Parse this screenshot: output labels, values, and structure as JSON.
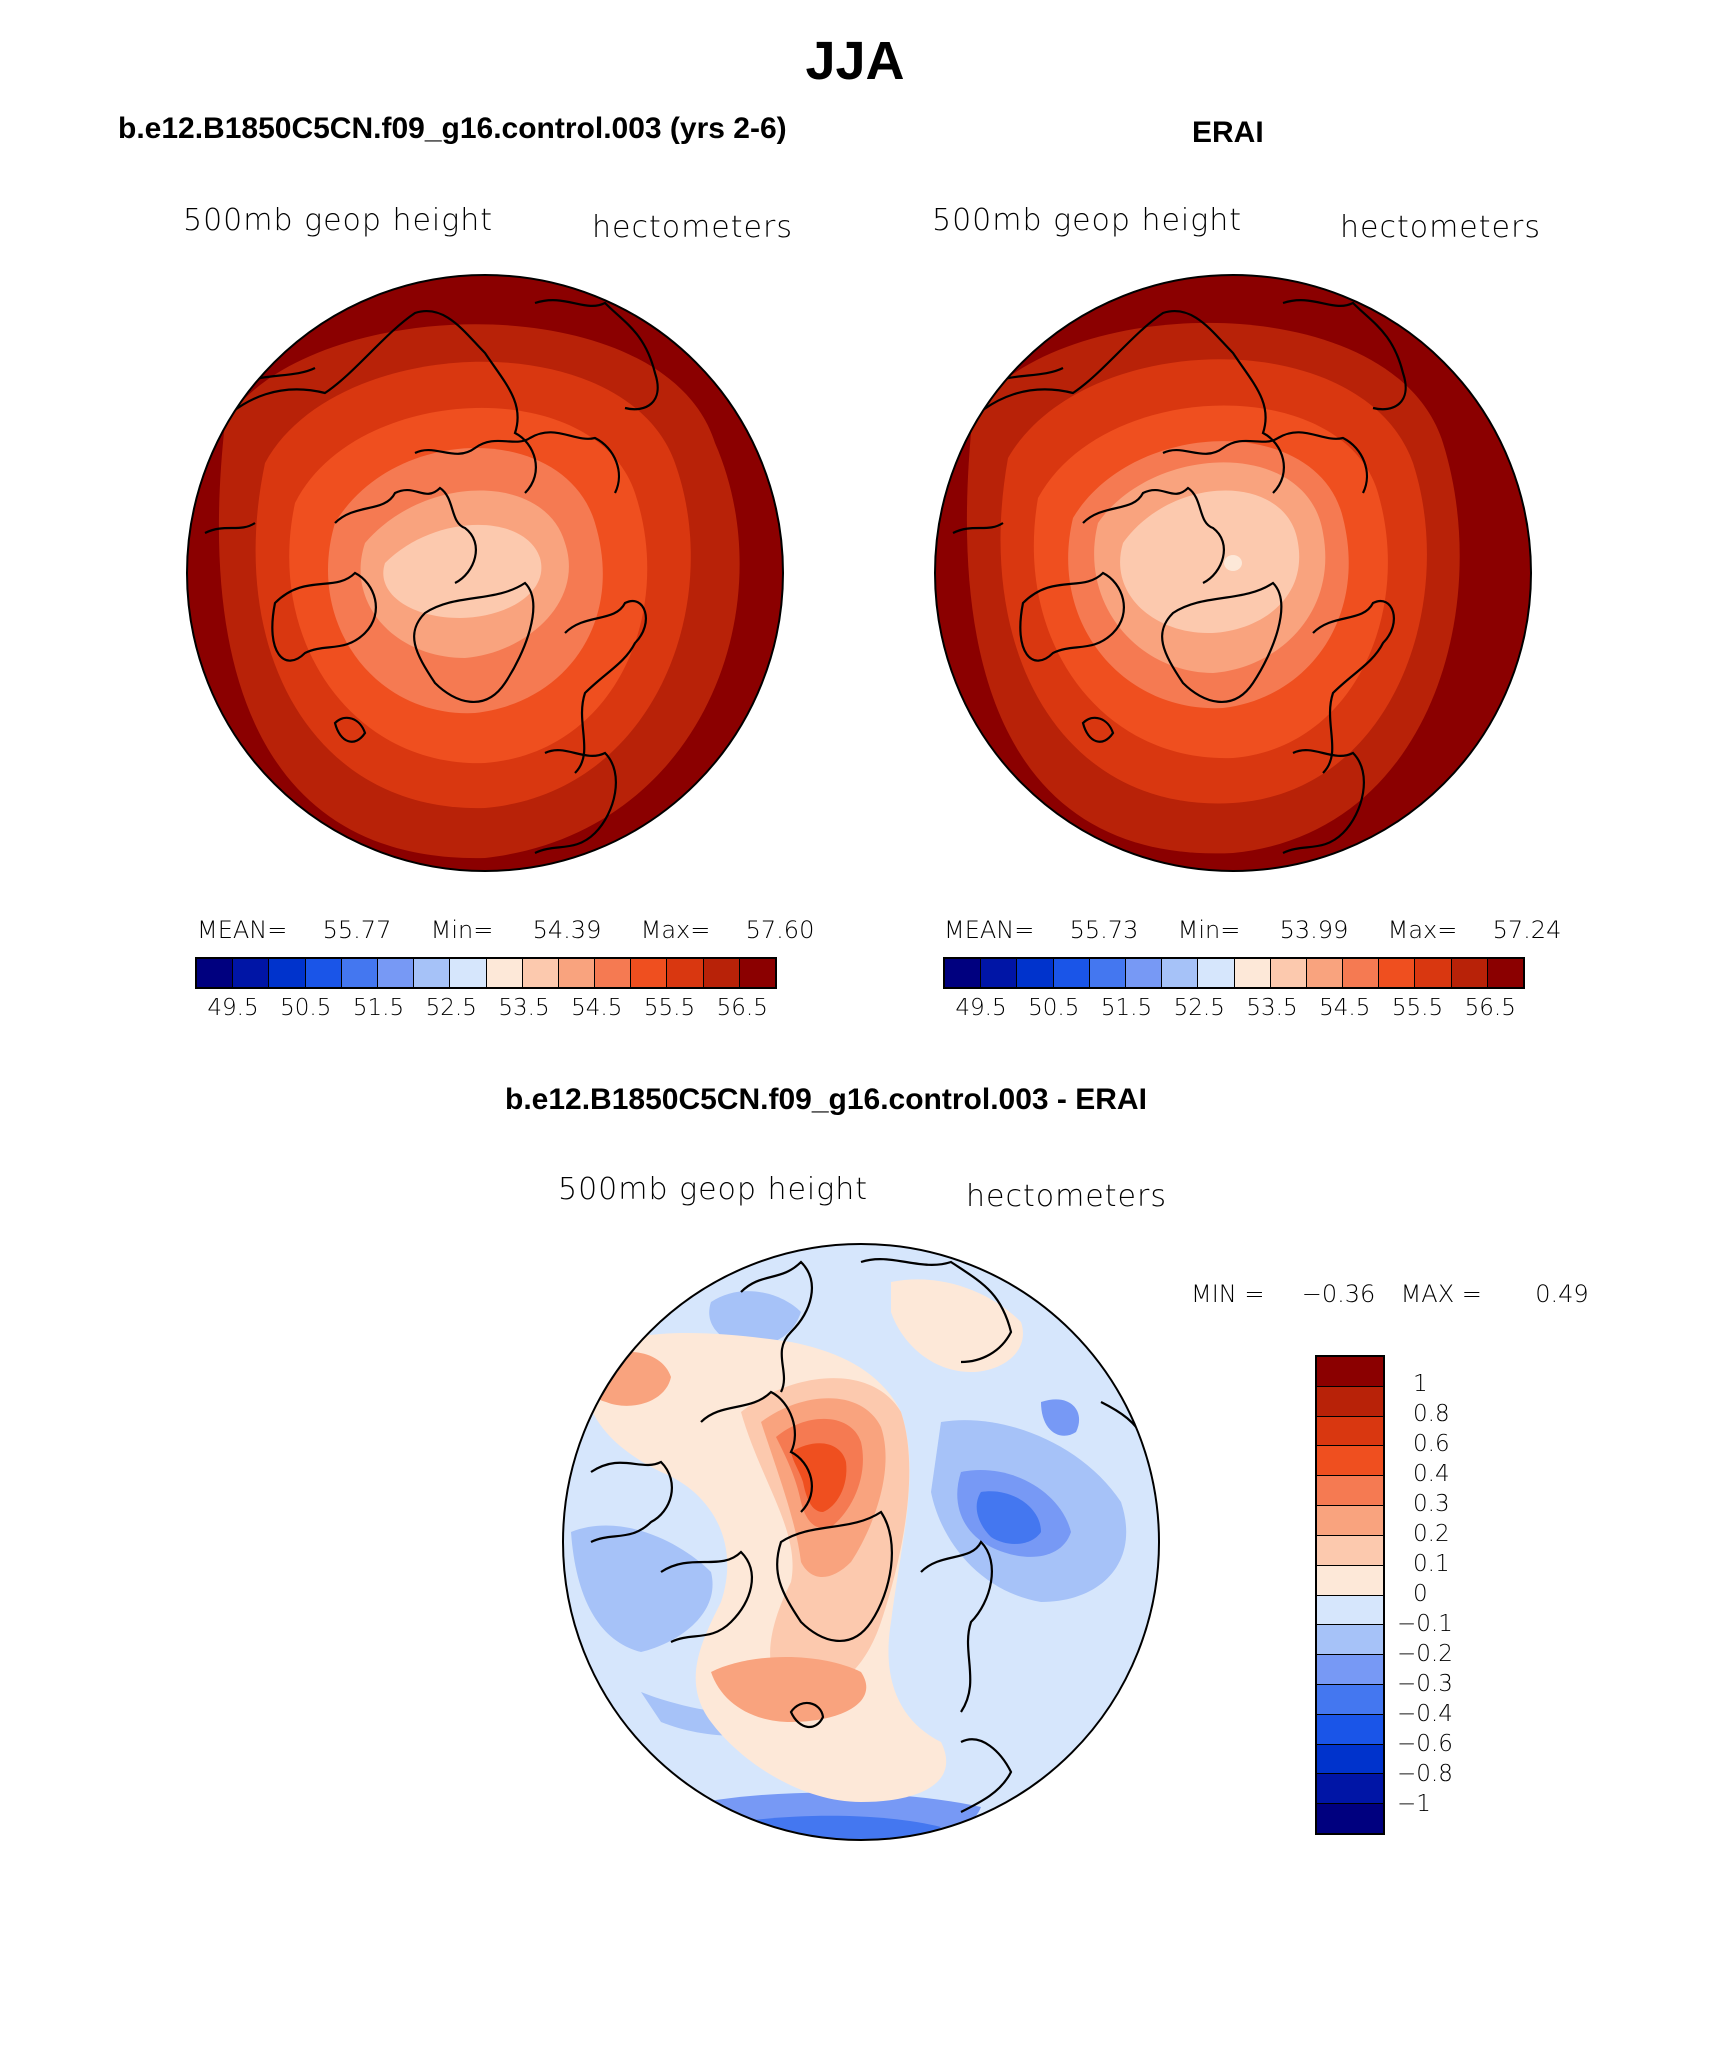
{
  "figure_title": "JJA",
  "panels": [
    {
      "title": "b.e12.B1850C5CN.f09_g16.control.003 (yrs 2-6)",
      "variable": "500mb geop height",
      "units": "hectometers",
      "stats": {
        "mean_label": "MEAN=",
        "mean": "55.77",
        "min_label": "Min=",
        "min": "54.39",
        "max_label": "Max=",
        "max": "57.60"
      }
    },
    {
      "title": "ERAI",
      "variable": "500mb geop height",
      "units": "hectometers",
      "stats": {
        "mean_label": "MEAN=",
        "mean": "55.73",
        "min_label": "Min=",
        "min": "53.99",
        "max_label": "Max=",
        "max": "57.24"
      }
    },
    {
      "title": "b.e12.B1850C5CN.f09_g16.control.003 - ERAI",
      "variable": "500mb geop height",
      "units": "hectometers",
      "stats": {
        "min_label": "MIN =",
        "min": "−0.36",
        "max_label": "MAX =",
        "max": "0.49"
      }
    }
  ],
  "colorbar_main": {
    "colors": [
      "#00007f",
      "#0015a6",
      "#0033cc",
      "#1a55e8",
      "#4477f0",
      "#7799f5",
      "#a6c2f8",
      "#d6e6fc",
      "#fde8d8",
      "#fcc9ae",
      "#f9a37e",
      "#f57a52",
      "#ef4f1f",
      "#d93710",
      "#b82208",
      "#8b0000"
    ],
    "tick_labels": [
      "49.5",
      "50.5",
      "51.5",
      "52.5",
      "53.5",
      "54.5",
      "55.5",
      "56.5"
    ]
  },
  "colorbar_diff": {
    "colors": [
      "#8b0000",
      "#b82208",
      "#d93710",
      "#ef4f1f",
      "#f57a52",
      "#f9a37e",
      "#fcc9ae",
      "#fde8d8",
      "#d6e6fc",
      "#a6c2f8",
      "#7799f5",
      "#4477f0",
      "#1a55e8",
      "#0033cc",
      "#0015a6",
      "#00007f"
    ],
    "tick_labels": [
      "1",
      "0.8",
      "0.6",
      "0.4",
      "0.3",
      "0.2",
      "0.1",
      "0",
      "−0.1",
      "−0.2",
      "−0.3",
      "−0.4",
      "−0.6",
      "−0.8",
      "−1"
    ]
  }
}
